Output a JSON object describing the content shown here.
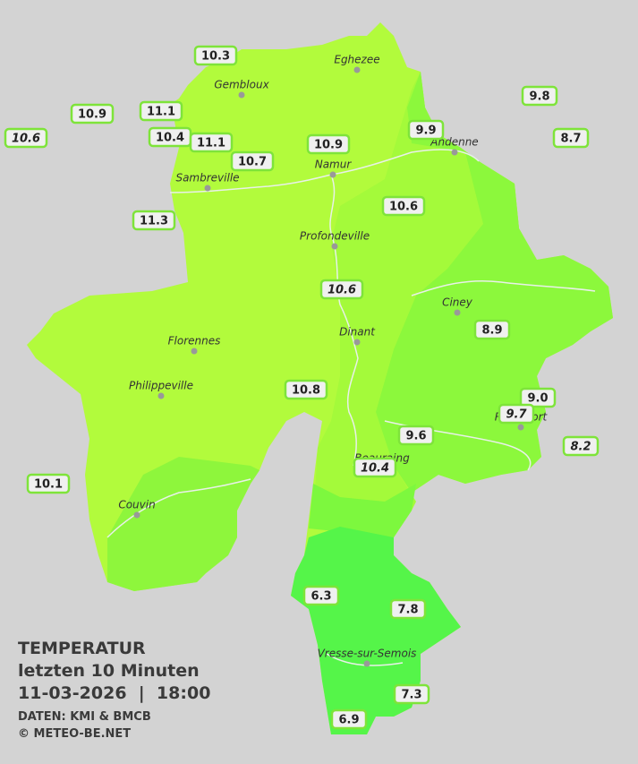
{
  "legend": {
    "title": "TEMPERATUR",
    "subtitle": "letzten 10 Minuten",
    "datetime": "11-03-2026  |  18:00",
    "source": "DATEN: KMI & BMCB",
    "copyright": "© METEO-BE.NET"
  },
  "cities": [
    "Eghezee",
    "Gembloux",
    "Andenne",
    "Namur",
    "Sambreville",
    "Profondeville",
    "Ciney",
    "Dinant",
    "Florennes",
    "Philippeville",
    "Rochefort",
    "Beauraing",
    "Couvin",
    "Vresse-sur-Semois"
  ],
  "stations": [
    {
      "label": "10.3",
      "italic": false
    },
    {
      "label": "10.9",
      "italic": false
    },
    {
      "label": "11.1",
      "italic": false
    },
    {
      "label": "10.6",
      "italic": true
    },
    {
      "label": "10.4",
      "italic": false
    },
    {
      "label": "11.1",
      "italic": false
    },
    {
      "label": "10.7",
      "italic": false
    },
    {
      "label": "10.9",
      "italic": false
    },
    {
      "label": "9.9",
      "italic": false
    },
    {
      "label": "9.8",
      "italic": false
    },
    {
      "label": "8.7",
      "italic": false
    },
    {
      "label": "11.3",
      "italic": false
    },
    {
      "label": "10.6",
      "italic": false
    },
    {
      "label": "10.6",
      "italic": true
    },
    {
      "label": "8.9",
      "italic": false
    },
    {
      "label": "10.8",
      "italic": false
    },
    {
      "label": "9.0",
      "italic": false
    },
    {
      "label": "9.7",
      "italic": true
    },
    {
      "label": "8.2",
      "italic": true
    },
    {
      "label": "9.6",
      "italic": false
    },
    {
      "label": "10.4",
      "italic": true
    },
    {
      "label": "10.1",
      "italic": false
    },
    {
      "label": "6.3",
      "italic": false
    },
    {
      "label": "7.8",
      "italic": false
    },
    {
      "label": "7.3",
      "italic": false
    },
    {
      "label": "6.9",
      "italic": false
    }
  ]
}
